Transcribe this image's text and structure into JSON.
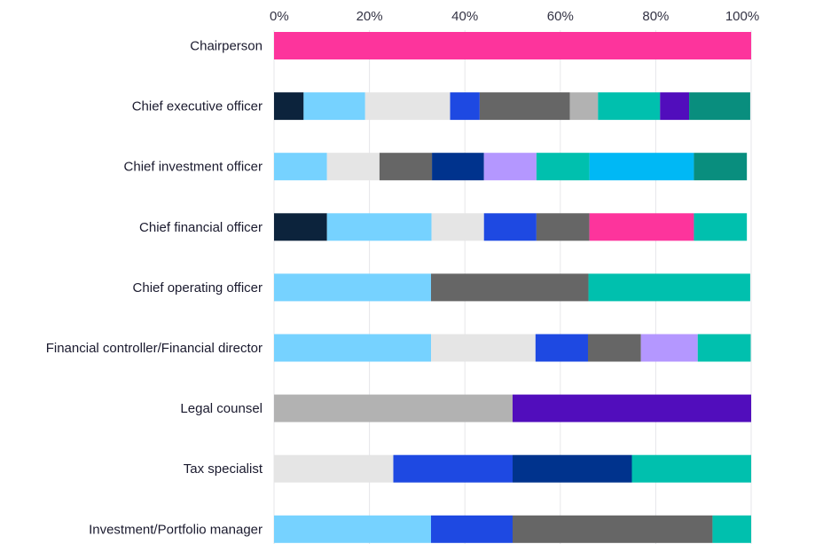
{
  "chart_data": {
    "type": "bar",
    "orientation": "horizontal",
    "stacked": true,
    "xlim": [
      0,
      100
    ],
    "x_ticks": [
      "0%",
      "20%",
      "40%",
      "60%",
      "80%",
      "100%"
    ],
    "x_tick_values": [
      0,
      20,
      40,
      60,
      80,
      100
    ],
    "grid": true,
    "categories": [
      "Chairperson",
      "Chief executive officer",
      "Chief investment officer",
      "Chief financial officer",
      "Chief operating officer",
      "Financial controller/Financial director",
      "Legal counsel",
      "Tax specialist",
      "Investment/Portfolio manager"
    ],
    "bars": [
      {
        "segments": [
          {
            "color": "#FD349C",
            "value": 100
          }
        ]
      },
      {
        "segments": [
          {
            "color": "#0C233C",
            "value": 6.2
          },
          {
            "color": "#76D2FF",
            "value": 12.9
          },
          {
            "color": "#E5E5E5",
            "value": 17.8
          },
          {
            "color": "#1E49E2",
            "value": 6.2
          },
          {
            "color": "#666666",
            "value": 18.9
          },
          {
            "color": "#B2B2B2",
            "value": 5.9
          },
          {
            "color": "#00C0AE",
            "value": 13.0
          },
          {
            "color": "#510DBC",
            "value": 6.1
          },
          {
            "color": "#098E7E",
            "value": 12.8
          }
        ]
      },
      {
        "segments": [
          {
            "color": "#76D2FF",
            "value": 11.1
          },
          {
            "color": "#E5E5E5",
            "value": 11.0
          },
          {
            "color": "#666666",
            "value": 11.0
          },
          {
            "color": "#00338D",
            "value": 10.9
          },
          {
            "color": "#B497FF",
            "value": 11.0
          },
          {
            "color": "#00C0AE",
            "value": 11.1
          },
          {
            "color": "#00B8F5",
            "value": 21.9
          },
          {
            "color": "#098E7E",
            "value": 11.1
          }
        ]
      },
      {
        "segments": [
          {
            "color": "#0C233C",
            "value": 11.1
          },
          {
            "color": "#76D2FF",
            "value": 21.9
          },
          {
            "color": "#E5E5E5",
            "value": 11.0
          },
          {
            "color": "#1E49E2",
            "value": 11.0
          },
          {
            "color": "#666666",
            "value": 11.1
          },
          {
            "color": "#FD349C",
            "value": 21.9
          },
          {
            "color": "#00C0AE",
            "value": 11.1
          }
        ]
      },
      {
        "segments": [
          {
            "color": "#76D2FF",
            "value": 32.9
          },
          {
            "color": "#666666",
            "value": 33.0
          },
          {
            "color": "#00C0AE",
            "value": 33.9
          }
        ]
      },
      {
        "segments": [
          {
            "color": "#76D2FF",
            "value": 32.9
          },
          {
            "color": "#E5E5E5",
            "value": 21.9
          },
          {
            "color": "#1E49E2",
            "value": 11.0
          },
          {
            "color": "#666666",
            "value": 11.1
          },
          {
            "color": "#B497FF",
            "value": 11.9
          },
          {
            "color": "#00C0AE",
            "value": 11.1
          }
        ]
      },
      {
        "segments": [
          {
            "color": "#B2B2B2",
            "value": 50
          },
          {
            "color": "#510DBC",
            "value": 50
          }
        ]
      },
      {
        "segments": [
          {
            "color": "#E5E5E5",
            "value": 25
          },
          {
            "color": "#1E49E2",
            "value": 25
          },
          {
            "color": "#00338D",
            "value": 25
          },
          {
            "color": "#00C0AE",
            "value": 25
          }
        ]
      },
      {
        "segments": [
          {
            "color": "#76D2FF",
            "value": 32.9
          },
          {
            "color": "#1E49E2",
            "value": 17.1
          },
          {
            "color": "#666666",
            "value": 41.9
          },
          {
            "color": "#00C0AE",
            "value": 8.1
          }
        ]
      }
    ]
  }
}
